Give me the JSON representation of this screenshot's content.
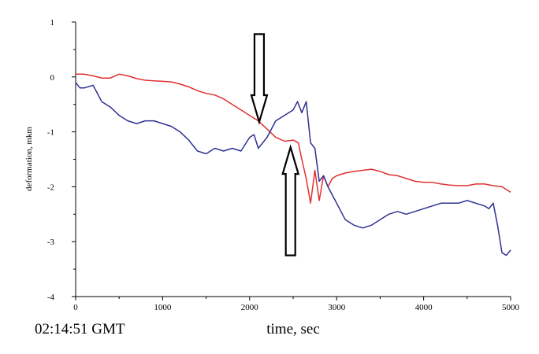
{
  "chart_data": {
    "type": "line",
    "xlabel": "time, sec",
    "ylabel": "deformation, mkm",
    "xlim": [
      0,
      5000
    ],
    "ylim": [
      -4,
      1
    ],
    "x_ticks": [
      0,
      1000,
      2000,
      3000,
      4000,
      5000
    ],
    "y_ticks": [
      1,
      0,
      -1,
      -2,
      -3,
      -4
    ],
    "grid": false,
    "legend": "none",
    "timestamp_label": "02:14:51 GMT",
    "series": [
      {
        "color": "#e03030",
        "x": [
          0,
          100,
          200,
          300,
          400,
          500,
          600,
          700,
          800,
          900,
          1000,
          1100,
          1200,
          1300,
          1400,
          1500,
          1600,
          1700,
          1800,
          1900,
          2000,
          2100,
          2200,
          2300,
          2400,
          2500,
          2560,
          2600,
          2650,
          2700,
          2750,
          2800,
          2850,
          2900,
          2950,
          3000,
          3100,
          3200,
          3300,
          3400,
          3500,
          3600,
          3700,
          3800,
          3900,
          4000,
          4100,
          4200,
          4300,
          4400,
          4500,
          4600,
          4700,
          4800,
          4900,
          5000
        ],
        "y": [
          0.05,
          0.05,
          0.02,
          -0.02,
          -0.02,
          0.05,
          0.02,
          -0.03,
          -0.06,
          -0.07,
          -0.08,
          -0.09,
          -0.13,
          -0.18,
          -0.25,
          -0.3,
          -0.33,
          -0.4,
          -0.5,
          -0.6,
          -0.7,
          -0.8,
          -0.95,
          -1.1,
          -1.17,
          -1.15,
          -1.2,
          -1.5,
          -1.85,
          -2.3,
          -1.7,
          -2.25,
          -1.8,
          -2.0,
          -1.85,
          -1.8,
          -1.75,
          -1.72,
          -1.7,
          -1.68,
          -1.72,
          -1.78,
          -1.8,
          -1.85,
          -1.9,
          -1.92,
          -1.92,
          -1.95,
          -1.97,
          -1.98,
          -1.98,
          -1.95,
          -1.95,
          -1.98,
          -2.0,
          -2.1
        ]
      },
      {
        "color": "#2e3192",
        "x": [
          0,
          50,
          100,
          200,
          300,
          400,
          500,
          600,
          700,
          800,
          900,
          1000,
          1100,
          1200,
          1300,
          1400,
          1500,
          1600,
          1700,
          1800,
          1900,
          2000,
          2050,
          2100,
          2200,
          2300,
          2400,
          2500,
          2550,
          2600,
          2650,
          2700,
          2750,
          2800,
          2850,
          2900,
          3000,
          3100,
          3200,
          3300,
          3400,
          3500,
          3600,
          3700,
          3800,
          3900,
          4000,
          4100,
          4200,
          4300,
          4400,
          4500,
          4600,
          4700,
          4750,
          4800,
          4850,
          4900,
          4950,
          5000
        ],
        "y": [
          -0.1,
          -0.2,
          -0.2,
          -0.15,
          -0.45,
          -0.55,
          -0.7,
          -0.8,
          -0.85,
          -0.8,
          -0.8,
          -0.85,
          -0.9,
          -1.0,
          -1.15,
          -1.35,
          -1.4,
          -1.3,
          -1.35,
          -1.3,
          -1.35,
          -1.1,
          -1.05,
          -1.3,
          -1.1,
          -0.8,
          -0.7,
          -0.6,
          -0.45,
          -0.65,
          -0.45,
          -1.2,
          -1.3,
          -1.9,
          -1.8,
          -2.0,
          -2.3,
          -2.6,
          -2.7,
          -2.75,
          -2.7,
          -2.6,
          -2.5,
          -2.45,
          -2.5,
          -2.45,
          -2.4,
          -2.35,
          -2.3,
          -2.3,
          -2.3,
          -2.25,
          -2.3,
          -2.35,
          -2.4,
          -2.3,
          -2.7,
          -3.2,
          -3.25,
          -3.15
        ]
      }
    ],
    "annotations": [
      {
        "type": "arrow-down",
        "x": 2110,
        "y_tip": -0.82,
        "y_tail": 0.78
      },
      {
        "type": "arrow-up",
        "x": 2470,
        "y_tip": -1.28,
        "y_tail": -3.25
      }
    ]
  }
}
